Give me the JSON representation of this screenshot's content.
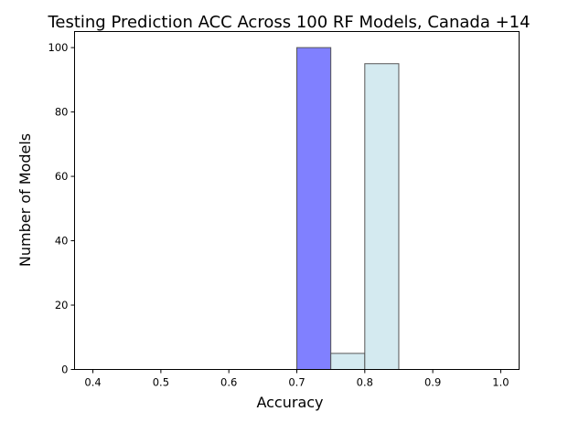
{
  "chart_data": {
    "type": "bar",
    "title": "Testing Prediction ACC Across 100 RF Models, Canada +14",
    "xlabel": "Accuracy",
    "ylabel": "Number of Models",
    "xlim": [
      0.373,
      1.027
    ],
    "ylim": [
      0,
      105
    ],
    "x_ticks": [
      0.4,
      0.5,
      0.6,
      0.7,
      0.8,
      0.9,
      1.0
    ],
    "x_tick_labels": [
      "0.4",
      "0.5",
      "0.6",
      "0.7",
      "0.8",
      "0.9",
      "1.0"
    ],
    "y_ticks": [
      0,
      20,
      40,
      60,
      80,
      100
    ],
    "y_tick_labels": [
      "0",
      "20",
      "40",
      "60",
      "80",
      "100"
    ],
    "grid": false,
    "bin_width": 0.05,
    "series": [
      {
        "color": "#8080ff",
        "bins": [
          {
            "start": 0.7,
            "end": 0.75,
            "value": 100
          }
        ]
      },
      {
        "color": "#d4eaf0",
        "bins": [
          {
            "start": 0.75,
            "end": 0.8,
            "value": 5
          },
          {
            "start": 0.8,
            "end": 0.85,
            "value": 95
          }
        ]
      }
    ]
  }
}
